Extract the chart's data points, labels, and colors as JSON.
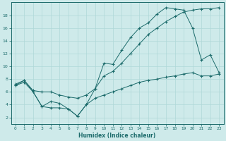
{
  "xlabel": "Humidex (Indice chaleur)",
  "bg_color": "#ceeaea",
  "line_color": "#1c6b6b",
  "grid_color": "#afd8d8",
  "xlim": [
    -0.5,
    23.5
  ],
  "ylim": [
    1,
    20
  ],
  "xticks": [
    0,
    1,
    2,
    3,
    4,
    5,
    6,
    7,
    8,
    9,
    10,
    11,
    12,
    13,
    14,
    15,
    16,
    17,
    18,
    19,
    20,
    21,
    22,
    23
  ],
  "yticks": [
    2,
    4,
    6,
    8,
    10,
    12,
    14,
    16,
    18
  ],
  "line1_x": [
    0,
    1,
    2,
    3,
    4,
    5,
    6,
    7,
    8,
    9,
    10,
    11,
    12,
    13,
    14,
    15,
    16,
    17,
    18,
    19,
    20,
    21,
    22,
    23
  ],
  "line1_y": [
    7.0,
    7.5,
    6.0,
    3.7,
    4.5,
    4.2,
    3.3,
    2.2,
    4.0,
    6.5,
    10.5,
    10.3,
    12.5,
    14.5,
    16.0,
    16.8,
    18.2,
    19.2,
    19.0,
    18.8,
    16.0,
    11.0,
    11.8,
    9.0
  ],
  "line2_x": [
    0,
    1,
    2,
    3,
    4,
    5,
    6,
    7,
    8,
    9,
    10,
    11,
    12,
    13,
    14,
    15,
    16,
    17,
    18,
    19,
    20,
    21,
    22,
    23
  ],
  "line2_y": [
    7.2,
    7.8,
    6.2,
    6.0,
    6.0,
    5.5,
    5.2,
    5.0,
    5.5,
    6.5,
    8.5,
    9.2,
    10.5,
    12.0,
    13.5,
    15.0,
    16.0,
    17.0,
    17.8,
    18.5,
    18.8,
    19.0,
    19.0,
    19.2
  ],
  "line3_x": [
    0,
    1,
    2,
    3,
    4,
    5,
    6,
    7,
    8,
    9,
    10,
    11,
    12,
    13,
    14,
    15,
    16,
    17,
    18,
    19,
    20,
    21,
    22,
    23
  ],
  "line3_y": [
    7.0,
    7.8,
    6.0,
    3.7,
    3.5,
    3.5,
    3.3,
    2.2,
    4.0,
    5.0,
    5.5,
    6.0,
    6.5,
    7.0,
    7.5,
    7.8,
    8.0,
    8.3,
    8.5,
    8.8,
    9.0,
    8.5,
    8.5,
    8.8
  ]
}
